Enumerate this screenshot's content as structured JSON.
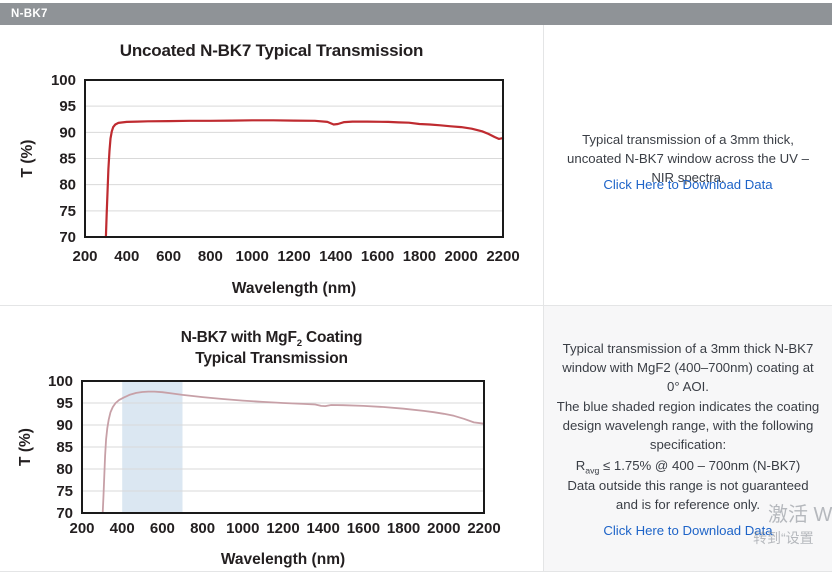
{
  "tab_bar": {
    "label": "N-BK7",
    "bg": "#8f9397"
  },
  "colors": {
    "link_blue": "#1e64c8",
    "tab_bar_gray": "#8f9397",
    "curve_red": "#bf2b30",
    "curve_pink": "#c7a0a7",
    "shaded_blue": "#dbe7f2",
    "grid_gray": "#d9d9d9"
  },
  "chart_data": [
    {
      "type": "line",
      "title": "Uncoated N-BK7 Typical Transmission",
      "xlabel": "Wavelength (nm)",
      "ylabel": "T (%)",
      "xlim": [
        200,
        2200
      ],
      "ylim": [
        70,
        100
      ],
      "xticks": [
        200,
        400,
        600,
        800,
        1000,
        1200,
        1400,
        1600,
        1800,
        2000,
        2200
      ],
      "yticks": [
        70,
        75,
        80,
        85,
        90,
        95,
        100
      ],
      "grid": "horizontal",
      "legend": "none",
      "series": [
        {
          "name": "Uncoated N-BK7 transmission",
          "color": "#bf2b30",
          "x": [
            300,
            304,
            308,
            312,
            317,
            322,
            328,
            335,
            345,
            360,
            380,
            400,
            450,
            500,
            600,
            700,
            800,
            900,
            1000,
            1100,
            1200,
            1300,
            1360,
            1390,
            1410,
            1440,
            1480,
            1550,
            1650,
            1700,
            1750,
            1800,
            1850,
            1900,
            1950,
            2000,
            2050,
            2100,
            2130,
            2160,
            2180,
            2200
          ],
          "y": [
            70,
            74.5,
            79,
            83,
            86.5,
            88.8,
            90.2,
            91.0,
            91.5,
            91.8,
            91.9,
            92.0,
            92.05,
            92.1,
            92.15,
            92.2,
            92.2,
            92.25,
            92.3,
            92.3,
            92.25,
            92.2,
            92.0,
            91.5,
            91.6,
            91.95,
            92.05,
            92.05,
            92.0,
            91.9,
            91.85,
            91.6,
            91.5,
            91.35,
            91.15,
            91.0,
            90.7,
            90.2,
            89.7,
            89.1,
            88.75,
            88.9
          ]
        }
      ]
    },
    {
      "type": "line",
      "title_parts": {
        "line1_prefix": "N-BK7 with MgF",
        "line1_sub": "2",
        "line1_suffix": " Coating",
        "line2": "Typical Transmission"
      },
      "xlabel": "Wavelength (nm)",
      "ylabel": "T (%)",
      "xlim": [
        200,
        2200
      ],
      "ylim": [
        70,
        100
      ],
      "xticks": [
        200,
        400,
        600,
        800,
        1000,
        1200,
        1400,
        1600,
        1800,
        2000,
        2200
      ],
      "yticks": [
        70,
        75,
        80,
        85,
        90,
        95,
        100
      ],
      "grid": "horizontal",
      "legend": "none",
      "shaded_region": {
        "x_start": 400,
        "x_end": 700,
        "color": "#dbe7f2"
      },
      "series": [
        {
          "name": "N-BK7 with MgF2 coating transmission",
          "color": "#c7a0a7",
          "x": [
            303,
            307,
            311,
            315,
            320,
            326,
            333,
            342,
            353,
            367,
            385,
            410,
            440,
            470,
            500,
            530,
            560,
            600,
            650,
            700,
            750,
            800,
            900,
            1000,
            1100,
            1200,
            1300,
            1360,
            1390,
            1410,
            1440,
            1500,
            1600,
            1700,
            1800,
            1900,
            1950,
            2000,
            2050,
            2100,
            2150,
            2200
          ],
          "y": [
            70,
            74,
            78.5,
            83,
            86.8,
            89.3,
            91.2,
            92.9,
            94.1,
            95.0,
            95.7,
            96.3,
            96.9,
            97.3,
            97.5,
            97.6,
            97.6,
            97.45,
            97.15,
            96.85,
            96.6,
            96.35,
            95.9,
            95.55,
            95.25,
            95.0,
            94.8,
            94.65,
            94.35,
            94.3,
            94.55,
            94.5,
            94.35,
            94.1,
            93.7,
            93.2,
            92.9,
            92.55,
            92.1,
            91.4,
            90.6,
            90.3
          ]
        }
      ]
    }
  ],
  "right_panels": [
    {
      "description": "Typical transmission of a 3mm thick, uncoated N-BK7 window across the UV – NIR spectra.",
      "link_label": "Click Here to Download Data"
    },
    {
      "p1": "Typical transmission of a 3mm thick N-BK7 window with MgF2 (400–700nm) coating at 0° AOI.",
      "p2": "The blue shaded region indicates the coating design wavelengh range, with the following specification:",
      "spec_r": "R",
      "spec_sub": "avg",
      "spec_rest": " ≤ 1.75% @ 400 – 700nm (N-BK7)",
      "p4": "Data outside this range is not guaranteed and is for reference only.",
      "link_label": "Click Here to Download Data"
    }
  ],
  "watermark": {
    "line1": "激活 W",
    "line2": "转到“设置"
  }
}
